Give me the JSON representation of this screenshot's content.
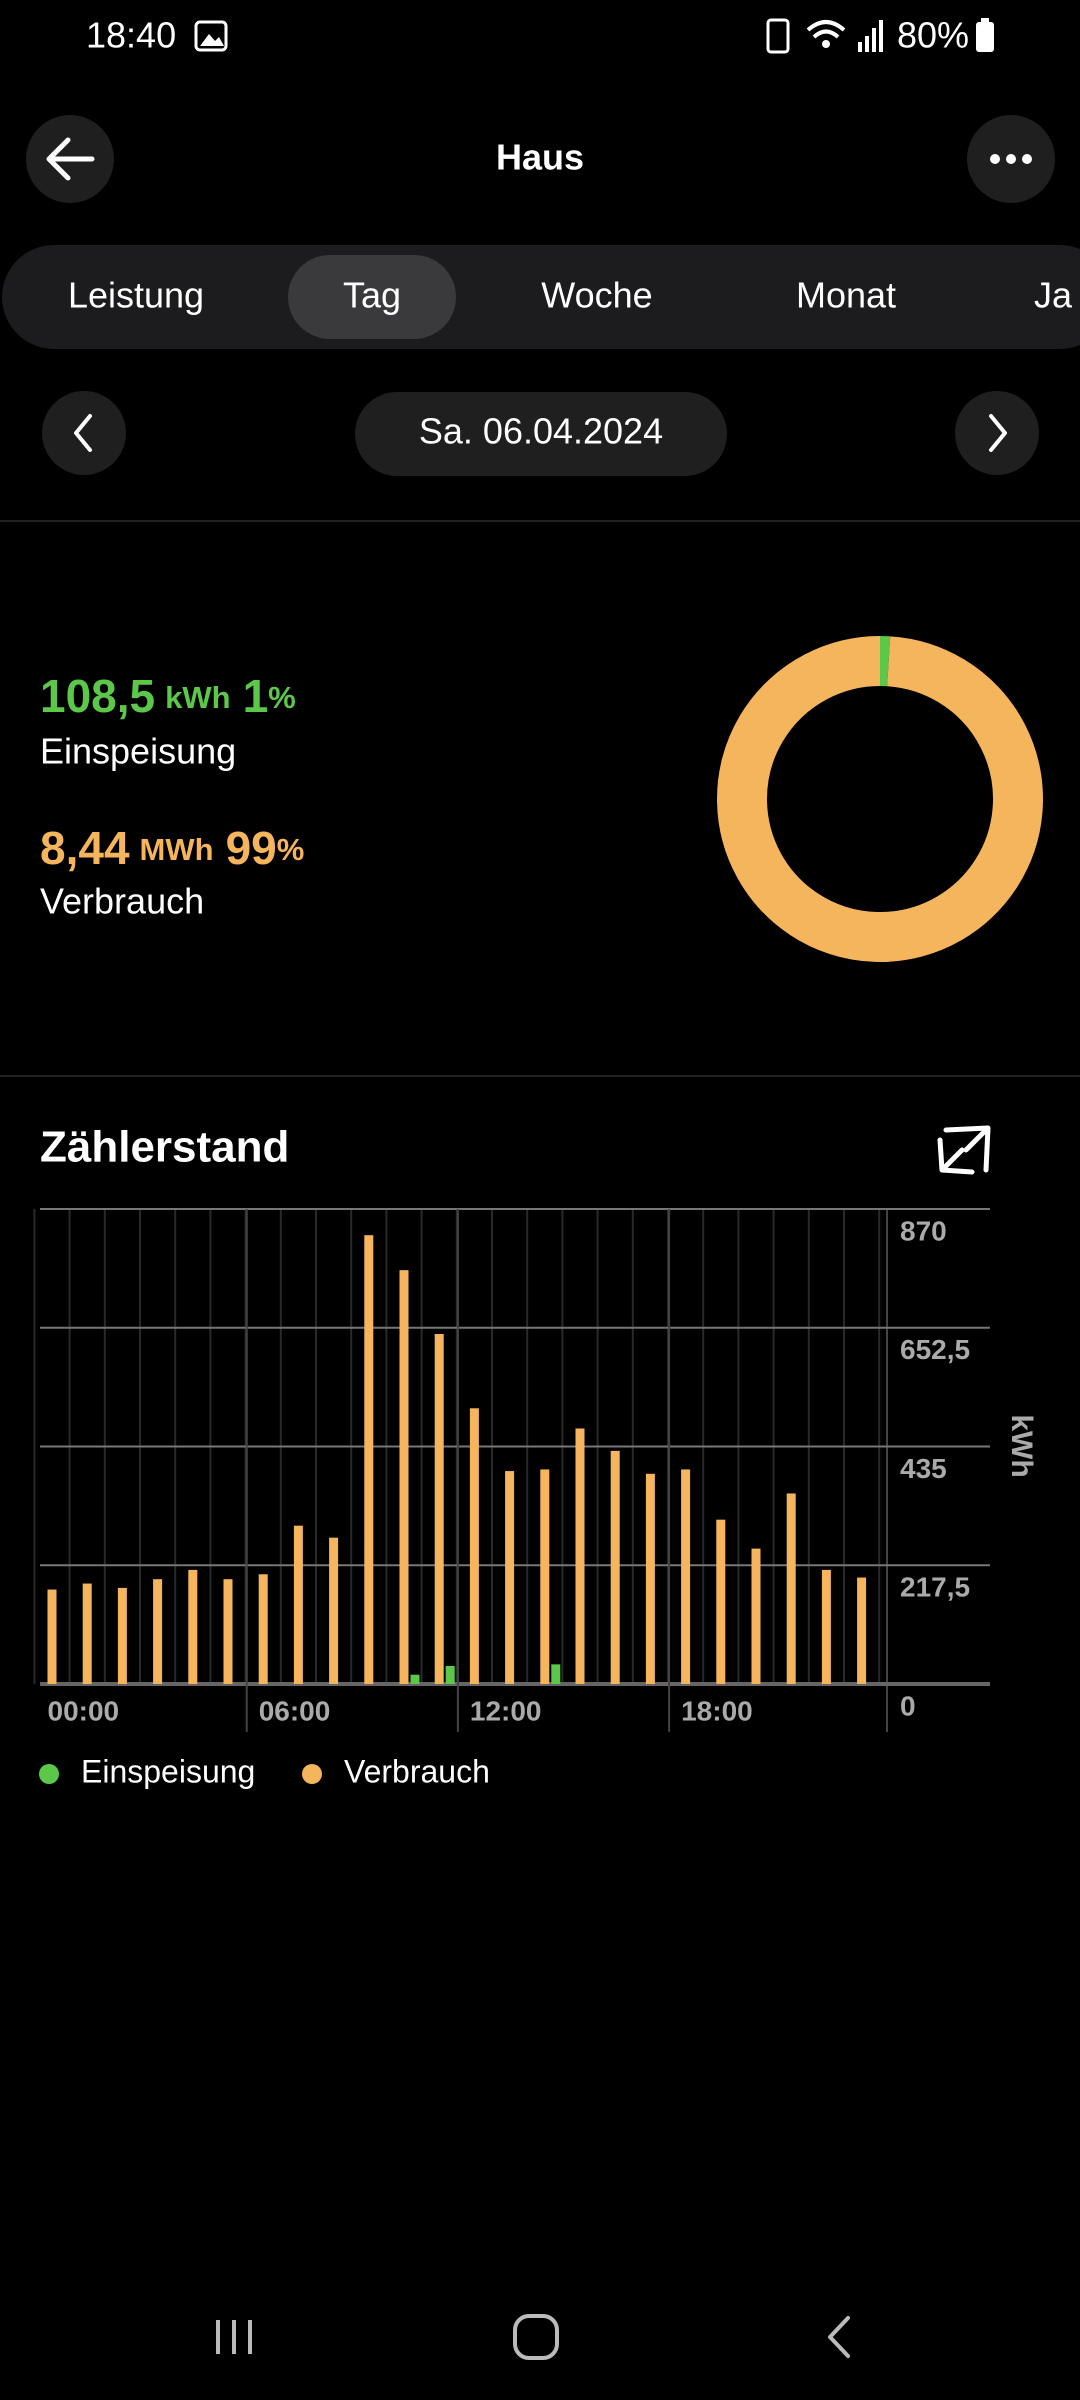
{
  "status_bar": {
    "time": "18:40",
    "battery": "80%"
  },
  "header": {
    "title": "Haus"
  },
  "tabs": {
    "items": [
      "Leistung",
      "Tag",
      "Woche",
      "Monat",
      "Ja"
    ],
    "active": 1
  },
  "date": "Sa. 06.04.2024",
  "chart_data": [
    {
      "type": "pie",
      "categories": [
        "Einspeisung",
        "Verbrauch"
      ],
      "values": [
        1,
        99
      ],
      "percent_sign": "%",
      "amounts": [
        "108,5",
        "8,44"
      ],
      "units": [
        "kWh",
        "MWh"
      ],
      "colors": [
        "#5cc84a",
        "#f5b55c"
      ]
    },
    {
      "type": "bar",
      "title": "Zählerstand",
      "y_label": "kWh",
      "categories": [
        "00:00",
        null,
        null,
        null,
        null,
        null,
        "06:00",
        null,
        null,
        null,
        null,
        null,
        "12:00",
        null,
        null,
        null,
        null,
        null,
        "18:00",
        null,
        null,
        null,
        null,
        null
      ],
      "series": [
        {
          "name": "Einspeisung",
          "color": "#5cc84a",
          "values": [
            0,
            0,
            0,
            0,
            0,
            0,
            0,
            0,
            0,
            0,
            17,
            33,
            0,
            0,
            36,
            0,
            0,
            0,
            0,
            0,
            0,
            0,
            0,
            0
          ]
        },
        {
          "name": "Verbrauch",
          "color": "#f5b55c",
          "values": [
            173,
            184,
            176,
            192,
            209,
            192,
            201,
            290,
            268,
            822,
            758,
            641,
            505,
            390,
            393,
            468,
            427,
            385,
            393,
            301,
            248,
            349,
            209,
            195
          ]
        }
      ],
      "ylim": [
        0,
        870
      ],
      "yticks": [
        0,
        {
          "value": 217.5,
          "label": "217,5"
        },
        435,
        {
          "value": 652.5,
          "label": "652,5"
        },
        870
      ],
      "grid": true
    }
  ]
}
